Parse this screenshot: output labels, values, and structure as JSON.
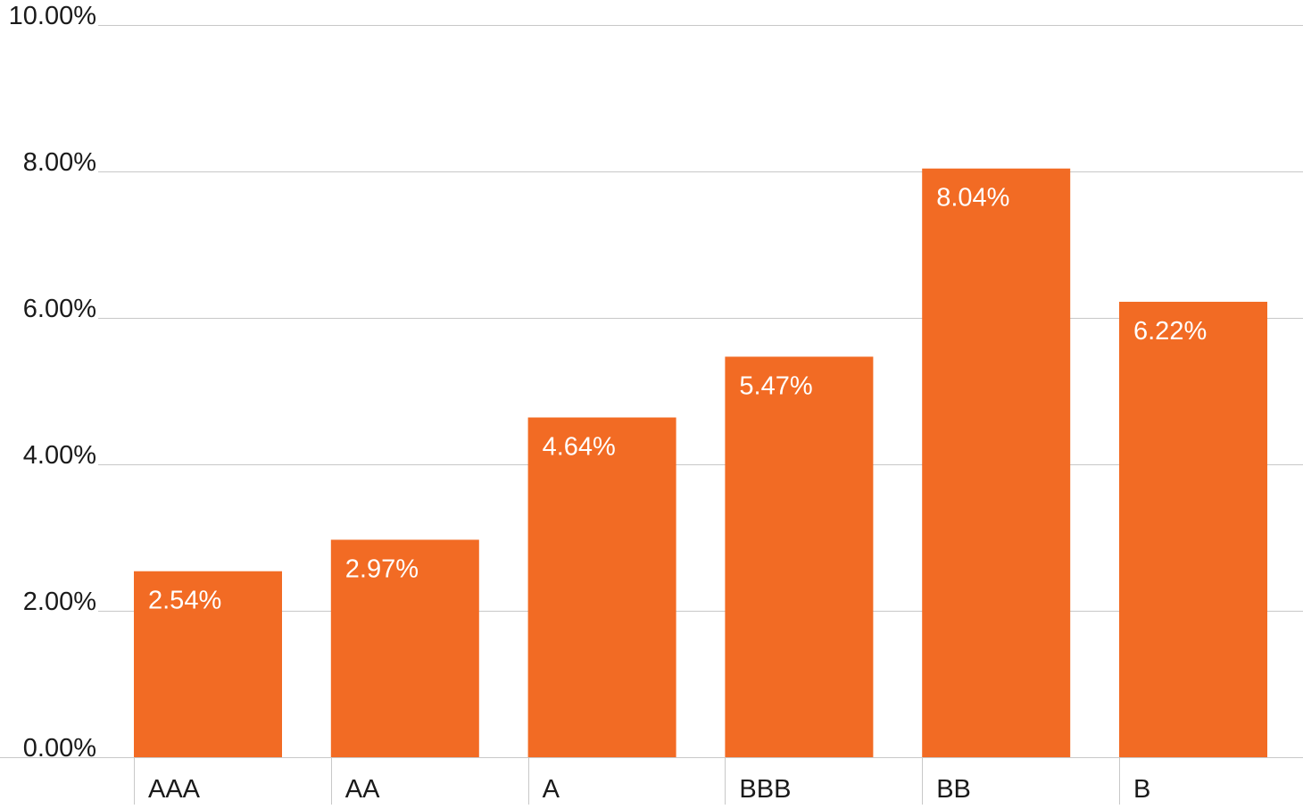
{
  "chart_data": {
    "type": "bar",
    "title": "",
    "xlabel": "",
    "ylabel": "",
    "categories": [
      "AAA",
      "AA",
      "A",
      "BBB",
      "BB",
      "B"
    ],
    "values": [
      2.54,
      2.97,
      4.64,
      5.47,
      8.04,
      6.22
    ],
    "data_labels": [
      "2.54%",
      "2.97%",
      "4.64%",
      "5.47%",
      "8.04%",
      "6.22%"
    ],
    "ylim": [
      0,
      10
    ],
    "yticks": [
      0,
      2,
      4,
      6,
      8,
      10
    ],
    "ytick_labels": [
      "0.00%",
      "2.00%",
      "4.00%",
      "6.00%",
      "8.00%",
      "10.00%"
    ],
    "grid": true,
    "legend": "none",
    "colors": {
      "bar": "#f26b24",
      "data_label": "#ffffff",
      "gridline": "#c8c8c8",
      "axis_text": "#1a1a1a"
    }
  }
}
